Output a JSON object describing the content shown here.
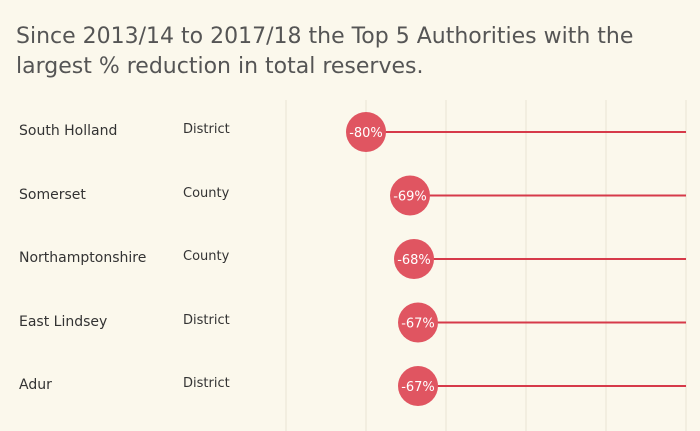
{
  "title": "Since 2013/14 to 2017/18 the Top 5 Authorities with the largest % reduction in total reserves.",
  "colors": {
    "accent": "#e05561",
    "line": "#d63a4a",
    "grid": "#e9e4d3",
    "background": "#fbf8ec"
  },
  "chart_data": {
    "type": "dot-line",
    "title": "Since 2013/14 to 2017/18 the Top 5 Authorities with the largest % reduction in total reserves.",
    "xlim": [
      -100,
      0
    ],
    "unit": "%",
    "rows": [
      {
        "name": "South Holland",
        "type": "District",
        "value": -80,
        "label": "-80%"
      },
      {
        "name": "Somerset",
        "type": "County",
        "value": -69,
        "label": "-69%"
      },
      {
        "name": "Northamptonshire",
        "type": "County",
        "value": -68,
        "label": "-68%"
      },
      {
        "name": "East Lindsey",
        "type": "District",
        "value": -67,
        "label": "-67%"
      },
      {
        "name": "Adur",
        "type": "District",
        "value": -67,
        "label": "-67%"
      }
    ]
  }
}
